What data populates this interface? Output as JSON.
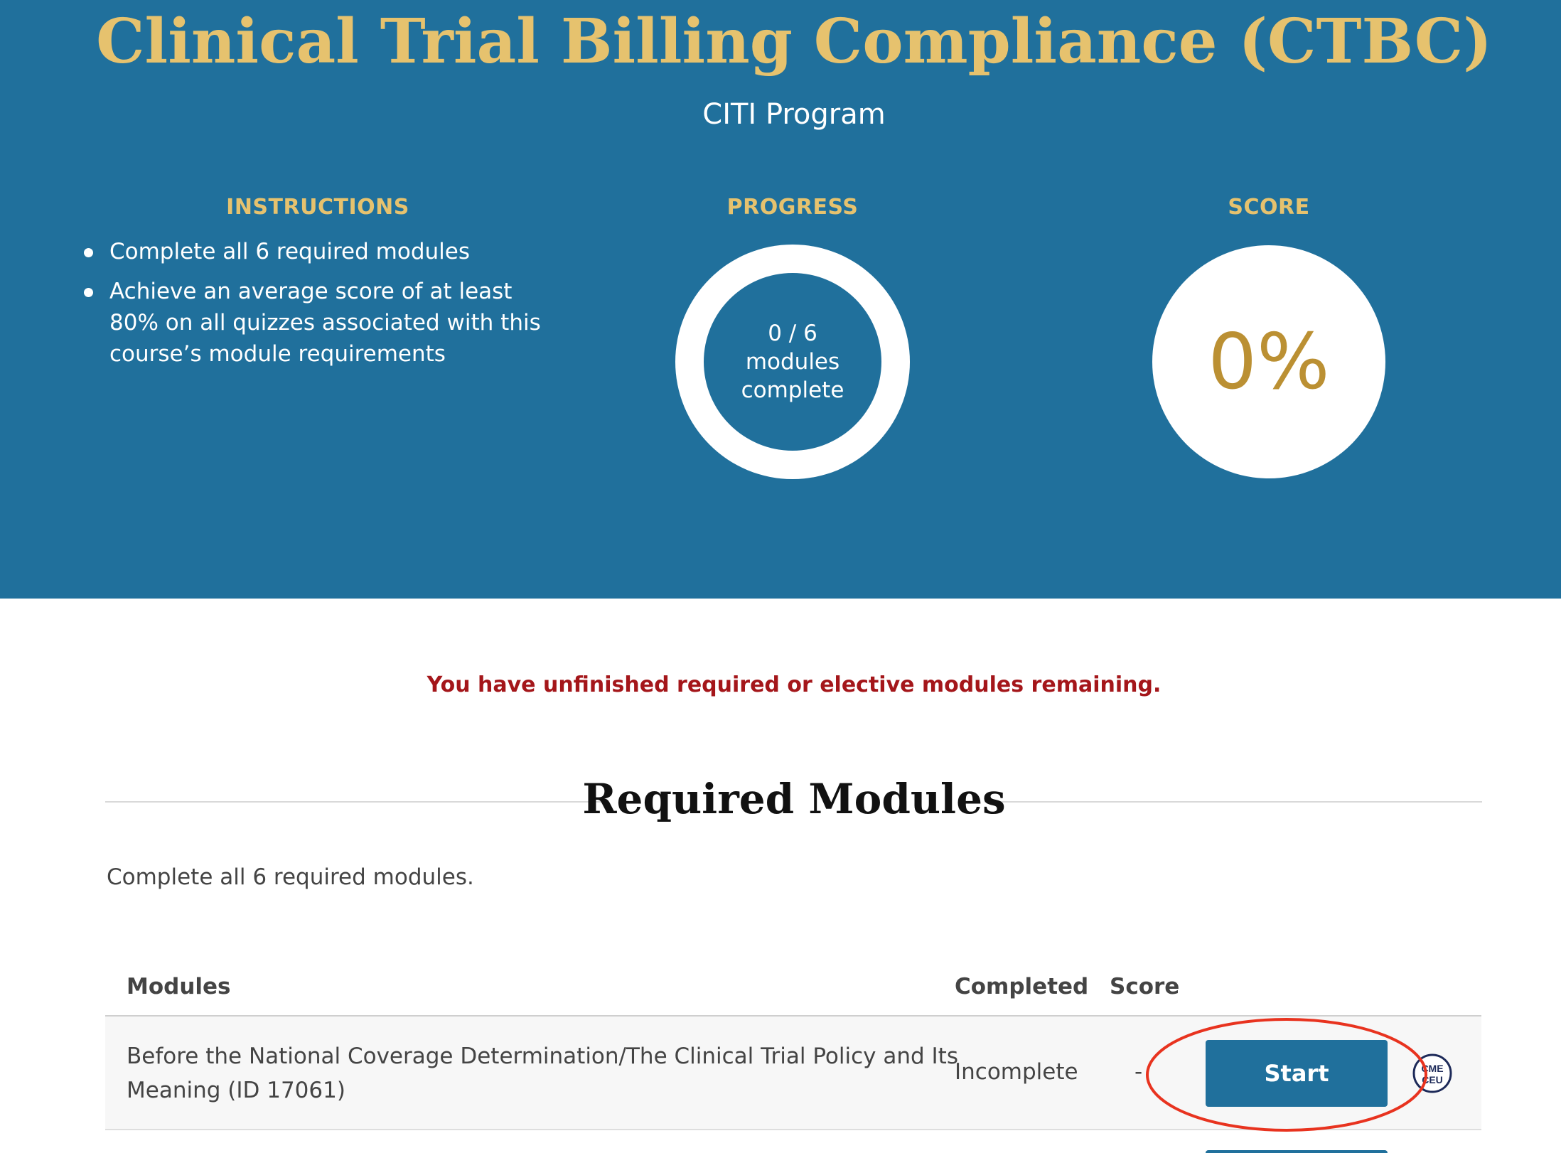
{
  "course": {
    "title": "Clinical Trial Billing Compliance (CTBC)",
    "provider": "CITI Program"
  },
  "instructions": {
    "heading": "INSTRUCTIONS",
    "items": [
      "Complete all 6 required modules",
      "Achieve an average score of at least 80% on all quizzes associated with this course’s module requirements"
    ]
  },
  "progress": {
    "heading": "PROGRESS",
    "count": "0 / 6",
    "line1": "modules",
    "line2": "complete",
    "completed": 0,
    "total": 6
  },
  "score": {
    "heading": "SCORE",
    "value": "0%"
  },
  "warning": "You have unfinished required or elective modules remaining.",
  "required_modules": {
    "title": "Required Modules",
    "description": "Complete all 6 required modules.",
    "columns": [
      "Modules",
      "Completed",
      "Score"
    ],
    "rows": [
      {
        "name": "Before the National Coverage Determination/The Clinical Trial Policy and Its Meaning (ID 17061)",
        "completed": "Incomplete",
        "score": "-",
        "action": "Start",
        "badge": {
          "line1": "CME",
          "line2": "CEU"
        }
      }
    ]
  },
  "colors": {
    "header_bg": "#20709c",
    "gold": "#e6c26e",
    "score_gold": "#bb9033",
    "warning_red": "#a4161a",
    "annotation_red": "#e8331f"
  }
}
